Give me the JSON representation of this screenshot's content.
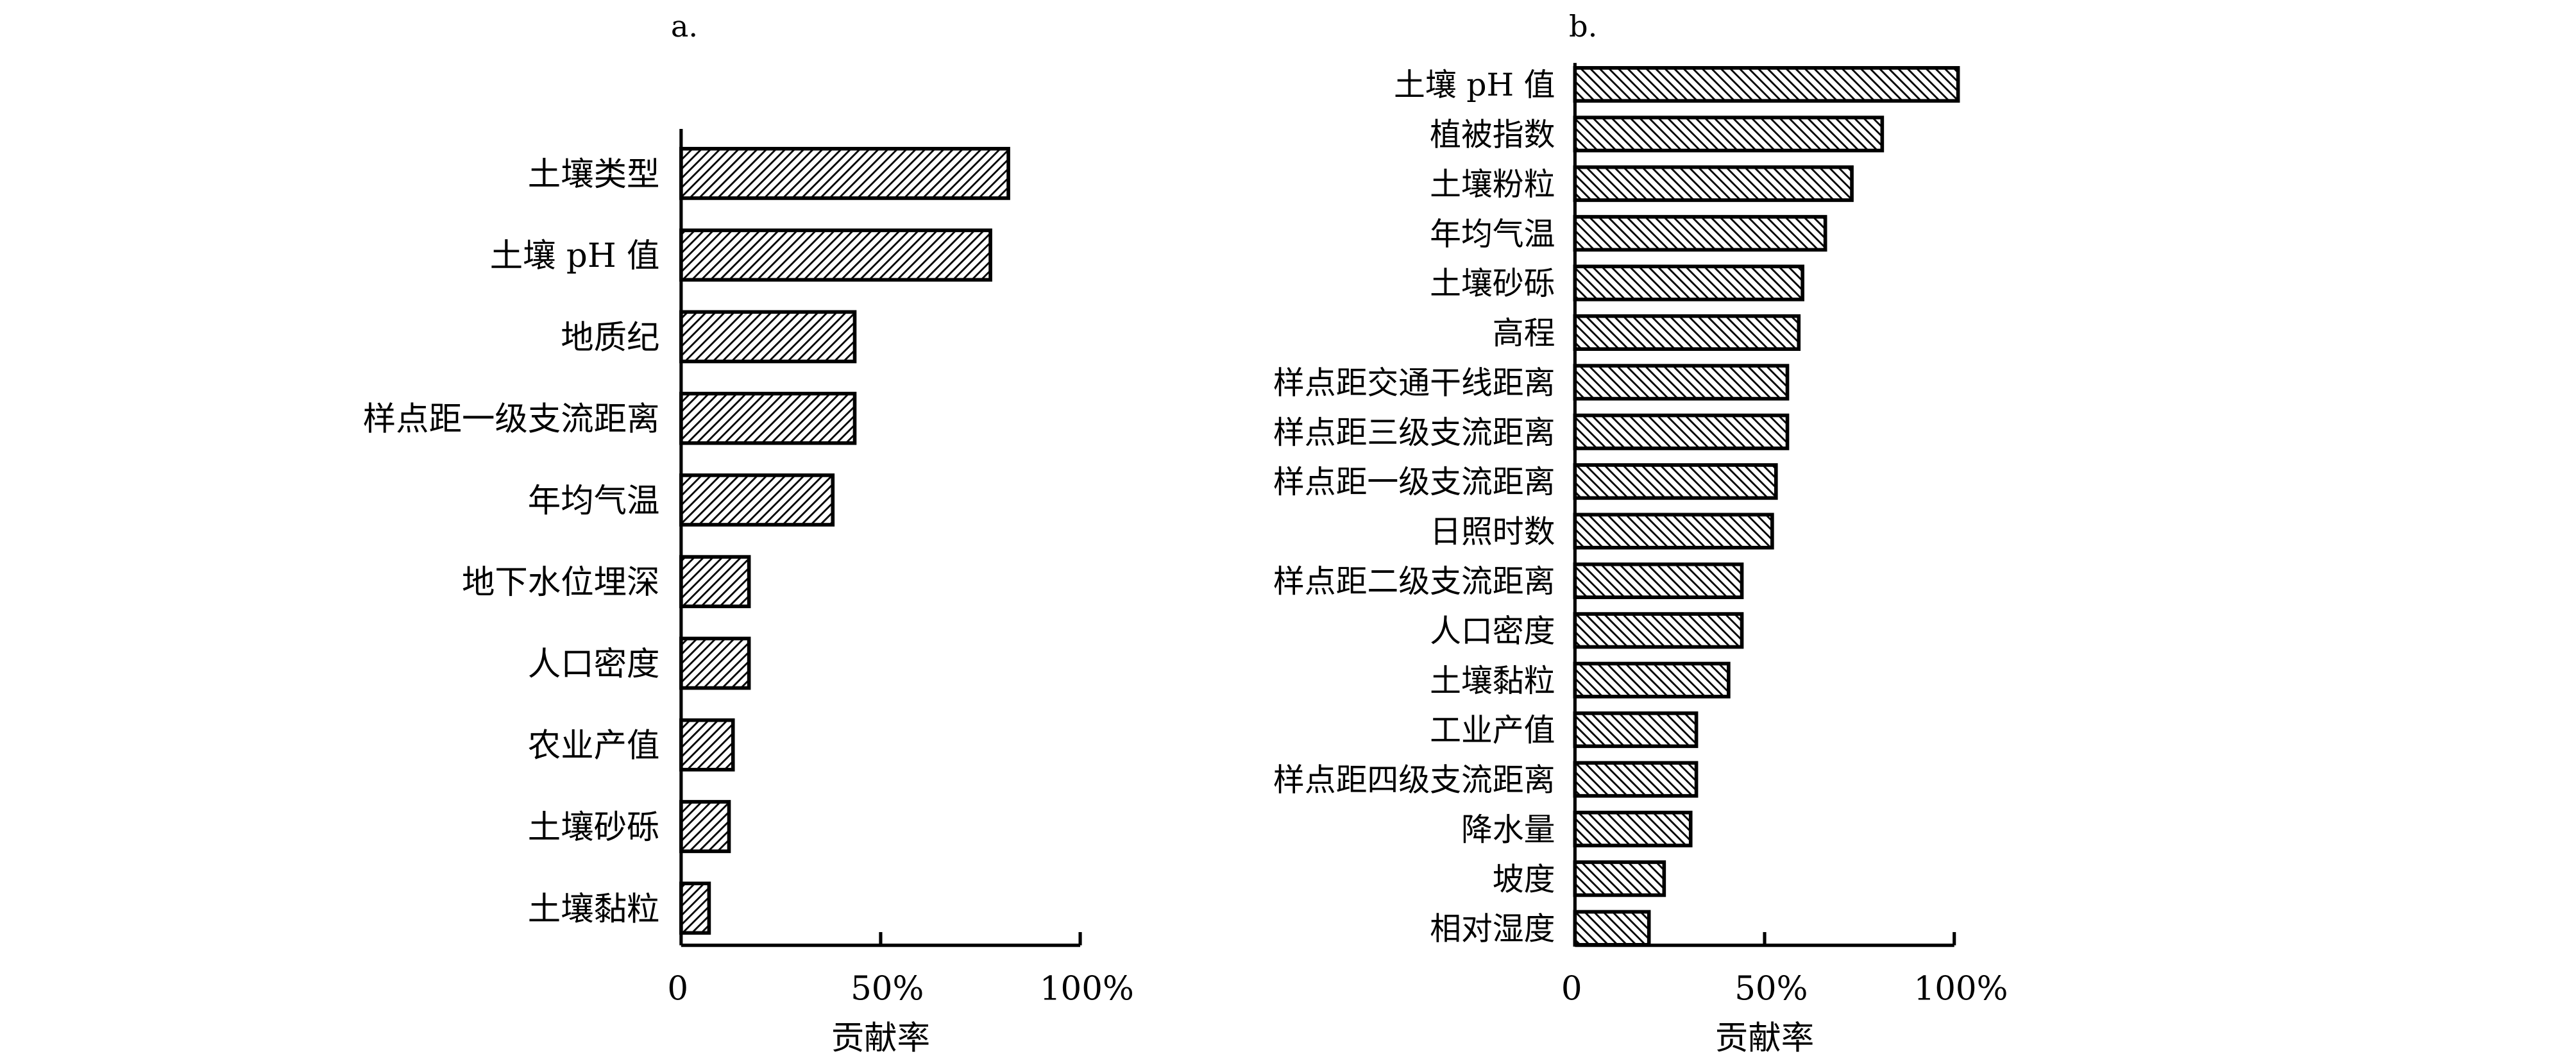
{
  "chart_data": [
    {
      "type": "bar",
      "orientation": "horizontal",
      "title": "a.",
      "xlabel": "贡献率",
      "ylabel": "",
      "xlim": [
        0,
        100
      ],
      "xticks": [
        "0",
        "50%",
        "100%"
      ],
      "hatch": "forward",
      "categories": [
        "土壤类型",
        "土壤 pH 值",
        "地质纪",
        "样点距一级支流距离",
        "年均气温",
        "地下水位埋深",
        "人口密度",
        "农业产值",
        "土壤砂砾",
        "土壤黏粒"
      ],
      "values": [
        82,
        77.5,
        43.5,
        43.5,
        38,
        17,
        17,
        13,
        12,
        7
      ]
    },
    {
      "type": "bar",
      "orientation": "horizontal",
      "title": "b.",
      "xlabel": "贡献率",
      "ylabel": "",
      "xlim": [
        0,
        100
      ],
      "xticks": [
        "0",
        "50%",
        "100%"
      ],
      "hatch": "backward",
      "categories": [
        "土壤 pH 值",
        "植被指数",
        "土壤粉粒",
        "年均气温",
        "土壤砂砾",
        "高程",
        "样点距交通干线距离",
        "样点距三级支流距离",
        "样点距一级支流距离",
        "日照时数",
        "样点距二级支流距离",
        "人口密度",
        "土壤黏粒",
        "工业产值",
        "样点距四级支流距离",
        "降水量",
        "坡度",
        "相对湿度"
      ],
      "values": [
        101,
        81,
        73,
        66,
        60,
        59,
        56,
        56,
        53,
        52,
        44,
        44,
        40.5,
        32,
        32,
        30.5,
        23.5,
        19.5
      ]
    }
  ]
}
